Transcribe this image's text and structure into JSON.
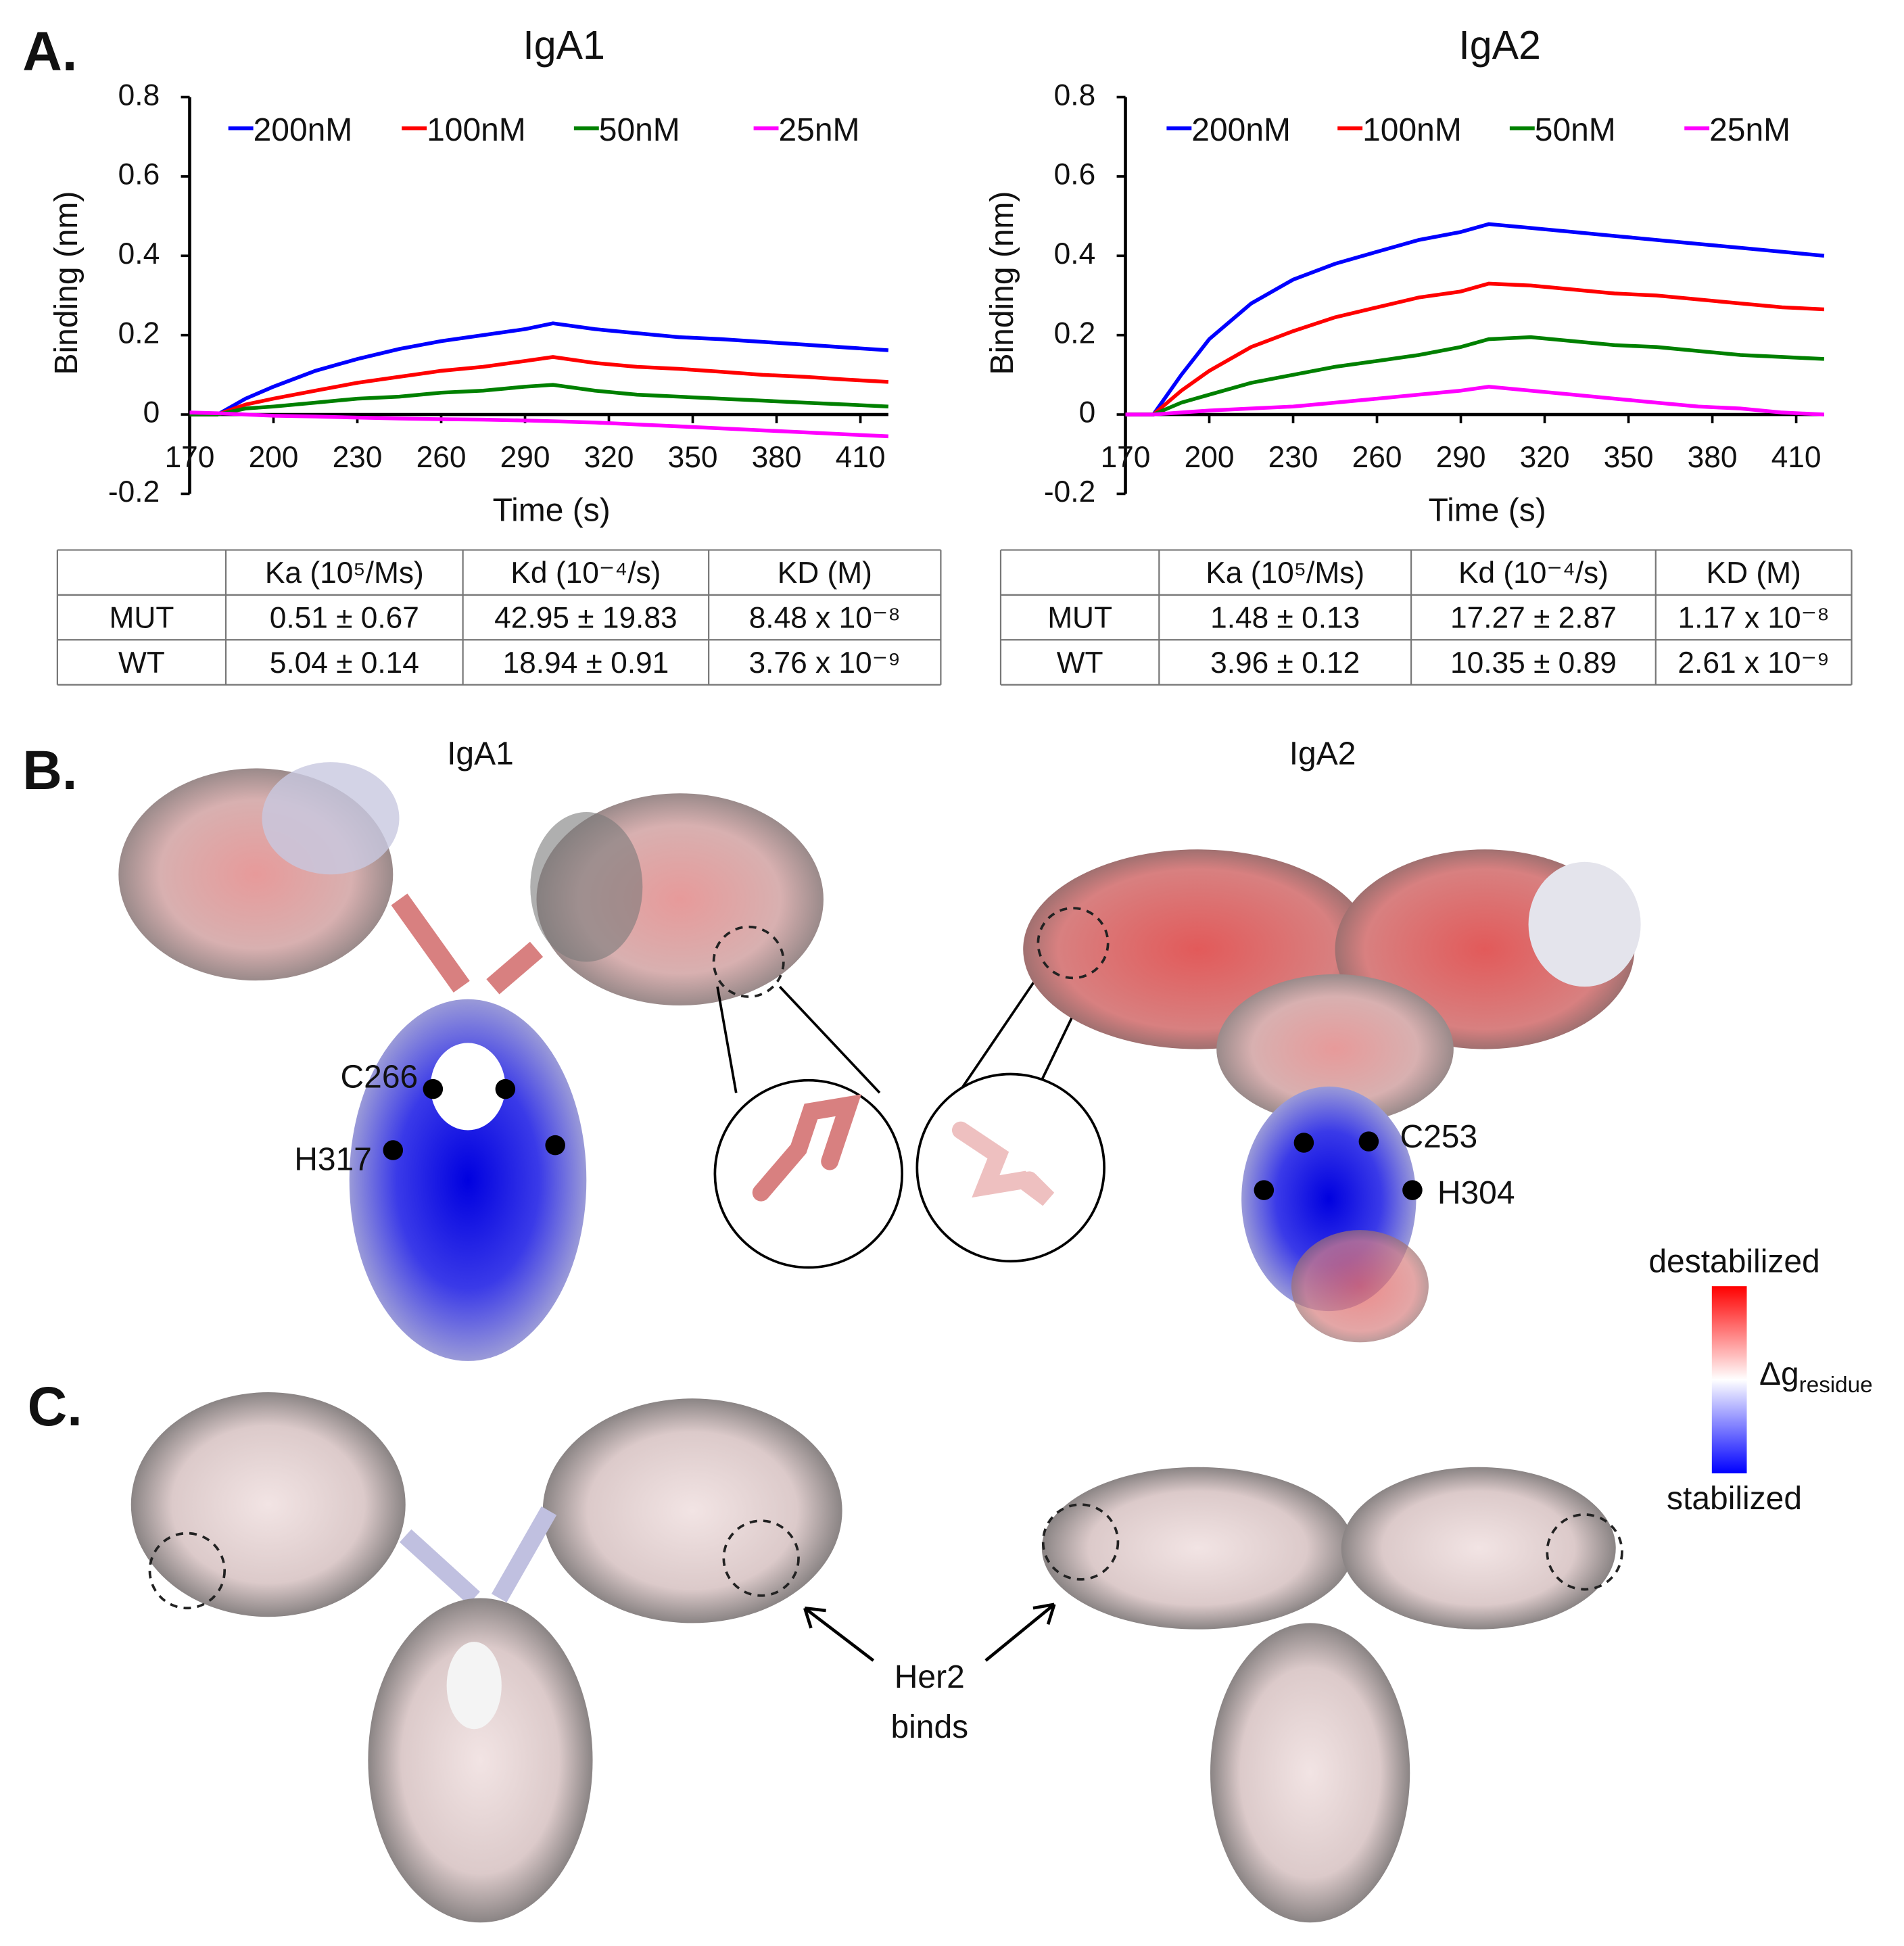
{
  "chart_data": [
    {
      "type": "line",
      "title": "IgA1",
      "x_label": "Time (s)",
      "y_label": "Binding (nm)",
      "x": [
        170,
        180,
        190,
        200,
        215,
        230,
        245,
        260,
        275,
        290,
        300,
        315,
        330,
        345,
        360,
        375,
        390,
        405,
        420
      ],
      "xlim": [
        170,
        420
      ],
      "ylim": [
        -0.2,
        0.8
      ],
      "xticks": [
        170,
        200,
        230,
        260,
        290,
        320,
        350,
        380,
        410
      ],
      "yticks": [
        -0.2,
        0,
        0.2,
        0.4,
        0.6,
        0.8
      ],
      "legend": "top",
      "series": [
        {
          "name": "200nM",
          "color": "#0000ff",
          "values": [
            0,
            0,
            0.04,
            0.07,
            0.11,
            0.14,
            0.165,
            0.185,
            0.2,
            0.215,
            0.23,
            0.215,
            0.205,
            0.195,
            0.19,
            0.183,
            0.176,
            0.169,
            0.162
          ]
        },
        {
          "name": "100nM",
          "color": "#ff0000",
          "values": [
            0,
            0,
            0.025,
            0.04,
            0.06,
            0.08,
            0.095,
            0.11,
            0.12,
            0.135,
            0.145,
            0.13,
            0.12,
            0.115,
            0.108,
            0.1,
            0.095,
            0.088,
            0.082
          ]
        },
        {
          "name": "50nM",
          "color": "#008000",
          "values": [
            0,
            0,
            0.015,
            0.02,
            0.03,
            0.04,
            0.045,
            0.055,
            0.06,
            0.07,
            0.075,
            0.06,
            0.05,
            0.045,
            0.04,
            0.035,
            0.03,
            0.025,
            0.02
          ]
        },
        {
          "name": "25nM",
          "color": "#ff00ff",
          "values": [
            0.005,
            0.003,
            0,
            -0.003,
            -0.005,
            -0.008,
            -0.01,
            -0.012,
            -0.013,
            -0.015,
            -0.017,
            -0.02,
            -0.025,
            -0.03,
            -0.035,
            -0.04,
            -0.045,
            -0.05,
            -0.055
          ]
        }
      ]
    },
    {
      "type": "line",
      "title": "IgA2",
      "x_label": "Time (s)",
      "y_label": "Binding (nm)",
      "x": [
        170,
        180,
        190,
        200,
        215,
        230,
        245,
        260,
        275,
        290,
        300,
        315,
        330,
        345,
        360,
        375,
        390,
        405,
        420
      ],
      "xlim": [
        170,
        420
      ],
      "ylim": [
        -0.2,
        0.8
      ],
      "xticks": [
        170,
        200,
        230,
        260,
        290,
        320,
        350,
        380,
        410
      ],
      "yticks": [
        -0.2,
        0,
        0.2,
        0.4,
        0.6,
        0.8
      ],
      "legend": "top",
      "series": [
        {
          "name": "200nM",
          "color": "#0000ff",
          "values": [
            0,
            0,
            0.1,
            0.19,
            0.28,
            0.34,
            0.38,
            0.41,
            0.44,
            0.46,
            0.48,
            0.47,
            0.46,
            0.45,
            0.44,
            0.43,
            0.42,
            0.41,
            0.4
          ]
        },
        {
          "name": "100nM",
          "color": "#ff0000",
          "values": [
            0,
            0,
            0.06,
            0.11,
            0.17,
            0.21,
            0.245,
            0.27,
            0.295,
            0.31,
            0.33,
            0.325,
            0.315,
            0.305,
            0.3,
            0.29,
            0.28,
            0.27,
            0.265
          ]
        },
        {
          "name": "50nM",
          "color": "#008000",
          "values": [
            0,
            0,
            0.03,
            0.05,
            0.08,
            0.1,
            0.12,
            0.135,
            0.15,
            0.17,
            0.19,
            0.195,
            0.185,
            0.175,
            0.17,
            0.16,
            0.15,
            0.145,
            0.14
          ]
        },
        {
          "name": "25nM",
          "color": "#ff00ff",
          "values": [
            0,
            0,
            0.005,
            0.01,
            0.015,
            0.02,
            0.03,
            0.04,
            0.05,
            0.06,
            0.07,
            0.06,
            0.05,
            0.04,
            0.03,
            0.02,
            0.015,
            0.005,
            0
          ]
        }
      ]
    }
  ],
  "panels": {
    "A": "A.",
    "B": "B.",
    "C": "C."
  },
  "tables": [
    {
      "columns": [
        "Ka (10⁵/Ms)",
        "Kd (10⁻⁴/s)",
        "KD (M)"
      ],
      "rows": [
        [
          "MUT",
          "0.51 ± 0.67",
          "42.95 ± 19.83",
          "8.48 x 10⁻⁸"
        ],
        [
          "WT",
          "5.04 ± 0.14",
          "18.94 ± 0.91",
          "3.76 x 10⁻⁹"
        ]
      ]
    },
    {
      "columns": [
        "Ka (10⁵/Ms)",
        "Kd (10⁻⁴/s)",
        "KD (M)"
      ],
      "rows": [
        [
          "MUT",
          "1.48 ± 0.13",
          "17.27 ± 2.87",
          "1.17 x 10⁻⁸"
        ],
        [
          "WT",
          "3.96 ± 0.12",
          "10.35 ± 0.89",
          "2.61 x 10⁻⁹"
        ]
      ]
    }
  ],
  "structures": {
    "left_title": "IgA1",
    "right_title": "IgA2",
    "residues": [
      "C266",
      "H317",
      "C253",
      "H304"
    ],
    "colorbar": {
      "top": "destabilized",
      "symbol": "Δg",
      "subscript": "residue",
      "bottom": "stabilized"
    },
    "annotation": [
      "Her2",
      "binds"
    ]
  }
}
